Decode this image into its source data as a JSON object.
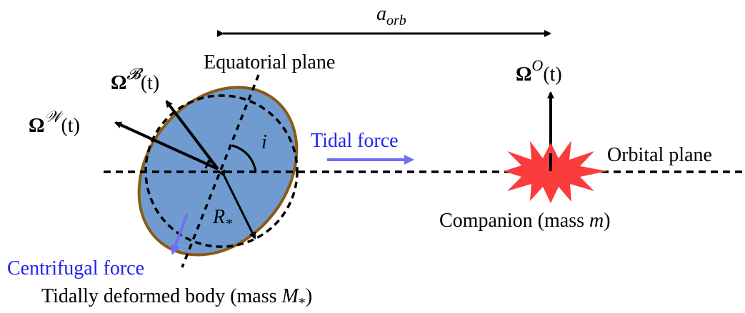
{
  "labels": {
    "a_orb": {
      "base": "a",
      "sub": "orb"
    },
    "equatorial_plane": "Equatorial plane",
    "omega_b": {
      "base": "Ω",
      "sup": "𝓑",
      "arg": "(t)"
    },
    "omega_w": {
      "base": "Ω",
      "sup": "𝒲",
      "arg": "(t)"
    },
    "omega_o": {
      "base": "Ω",
      "sup": "O",
      "arg": "(t)"
    },
    "inclination": "i",
    "tidal_force": "Tidal force",
    "orbital_plane": "Orbital plane",
    "radius": {
      "base": "R",
      "sub": "*"
    },
    "companion": {
      "text": "Companion (mass ",
      "var": "m",
      "end": ")"
    },
    "centrifugal_force": "Centrifugal force",
    "body": {
      "text": "Tidally deformed body (mass ",
      "var": "M",
      "sub": "*",
      "end": ")"
    }
  }
}
